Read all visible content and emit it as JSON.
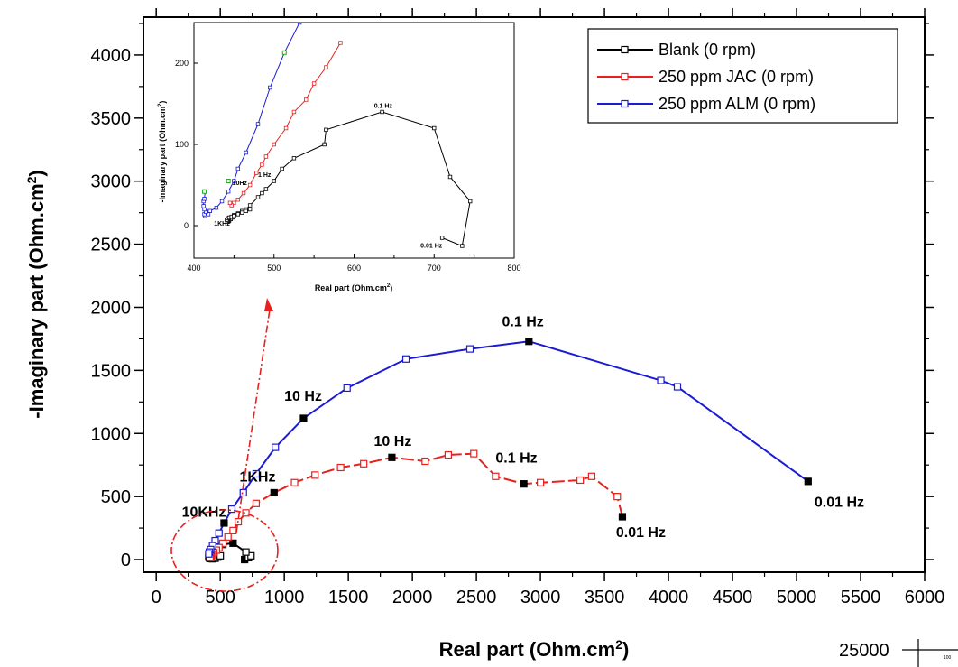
{
  "chart_data": {
    "type": "line",
    "xlabel": "Real part (Ohm.cm²)",
    "ylabel": "-Imaginary part (Ohm.cm²)",
    "xlim": [
      -100,
      6000
    ],
    "ylim": [
      -100,
      4300
    ],
    "xticks": [
      "0",
      "500",
      "1000",
      "1500",
      "2000",
      "2500",
      "3000",
      "3500",
      "4000",
      "4500",
      "5000",
      "5500",
      "6000"
    ],
    "yticks": [
      "0",
      "500",
      "1000",
      "1500",
      "2000",
      "2500",
      "3000",
      "3500",
      "4000"
    ],
    "grid": false,
    "legend_position": "top-right",
    "colors": {
      "blank": "#000000",
      "jac": "#e8201e",
      "alm": "#1b1bd4",
      "green": "#22aa22"
    },
    "series": [
      {
        "name": "Blank (0 rpm)",
        "color": "#000000",
        "x": [
          690,
          720,
          740,
          700,
          600,
          520,
          480,
          450,
          430,
          420,
          415,
          410,
          415,
          425,
          440,
          460,
          480,
          500
        ],
        "y": [
          0,
          15,
          30,
          60,
          130,
          120,
          100,
          80,
          60,
          45,
          30,
          20,
          12,
          8,
          6,
          10,
          20,
          30
        ],
        "filled_idx": [
          0,
          4
        ]
      },
      {
        "name": "250 ppm JAC (0 rpm)",
        "color": "#e8201e",
        "x": [
          3640,
          3600,
          3400,
          3310,
          3000,
          2870,
          2650,
          2480,
          2280,
          2100,
          1840,
          1620,
          1440,
          1240,
          1080,
          920,
          780,
          700,
          640,
          600,
          560,
          520,
          490,
          470,
          450,
          440,
          430,
          425,
          420
        ],
        "y": [
          340,
          500,
          660,
          630,
          610,
          600,
          660,
          840,
          830,
          780,
          810,
          760,
          730,
          670,
          610,
          530,
          445,
          370,
          300,
          230,
          180,
          130,
          95,
          75,
          55,
          40,
          30,
          22,
          15
        ],
        "filled_idx": [
          0,
          5,
          10,
          15
        ]
      },
      {
        "name": "250 ppm ALM (0 rpm)",
        "color": "#1b1bd4",
        "x": [
          5090,
          4070,
          3940,
          2910,
          2450,
          1950,
          1490,
          1150,
          930,
          780,
          680,
          590,
          530,
          490,
          460,
          440,
          425,
          415,
          410
        ],
        "y": [
          620,
          1370,
          1420,
          1730,
          1670,
          1590,
          1360,
          1120,
          890,
          680,
          530,
          400,
          290,
          210,
          150,
          110,
          80,
          60,
          45
        ],
        "filled_idx": [
          0,
          3,
          7,
          12
        ]
      }
    ],
    "annotations": [
      {
        "text": "10KHz",
        "x": 200,
        "y": 340
      },
      {
        "text": "1KHz",
        "x": 650,
        "y": 620
      },
      {
        "text": "10 Hz",
        "x": 1000,
        "y": 1260
      },
      {
        "text": "10 Hz",
        "x": 1700,
        "y": 900
      },
      {
        "text": "0.1 Hz",
        "x": 2700,
        "y": 1850
      },
      {
        "text": "0.1 Hz",
        "x": 2650,
        "y": 770
      },
      {
        "text": "0.01 Hz",
        "x": 3590,
        "y": 180
      },
      {
        "text": "0.01 Hz",
        "x": 5140,
        "y": 420
      }
    ],
    "extra_text": {
      "corner_number": "25000",
      "corner_small": "100"
    },
    "inset": {
      "xlabel": "Real part (Ohm.cm²)",
      "ylabel": "-Imaginary part (Ohm.cm²)",
      "xlim": [
        400,
        800
      ],
      "ylim": [
        -40,
        250
      ],
      "xticks": [
        "400",
        "500",
        "600",
        "700",
        "800"
      ],
      "yticks": [
        "0",
        "100",
        "200"
      ],
      "series": [
        {
          "name": "Blank (0 rpm)",
          "color": "#000000",
          "x": [
            710,
            735,
            745,
            720,
            700,
            635,
            565,
            563,
            525,
            510,
            500,
            490,
            485,
            480,
            470,
            465,
            460,
            455,
            450,
            448,
            446,
            444,
            443,
            442,
            441,
            442,
            444,
            447,
            450,
            455,
            460,
            465,
            470
          ],
          "y": [
            -15,
            -25,
            30,
            60,
            120,
            140,
            118,
            100,
            83,
            70,
            55,
            45,
            40,
            35,
            25,
            20,
            18,
            15,
            13,
            10,
            8,
            6,
            5,
            5,
            7,
            9,
            10,
            11,
            12,
            14,
            16,
            18,
            20
          ]
        },
        {
          "name": "250 ppm JAC (0 rpm)",
          "color": "#e8201e",
          "x": [
            583,
            565,
            550,
            540,
            525,
            515,
            500,
            490,
            485,
            478,
            470,
            462,
            455,
            450,
            447,
            445
          ],
          "y": [
            225,
            195,
            175,
            155,
            140,
            120,
            100,
            85,
            75,
            65,
            50,
            40,
            32,
            28,
            25,
            28
          ]
        },
        {
          "name": "250 ppm ALM (0 rpm)",
          "color": "#1b1bd4",
          "x": [
            532,
            513,
            495,
            480,
            465,
            455,
            450,
            443,
            435,
            428,
            420,
            418,
            414,
            413,
            415,
            413,
            412,
            412,
            413,
            414
          ],
          "y": [
            250,
            213,
            170,
            125,
            90,
            70,
            55,
            42,
            30,
            22,
            18,
            14,
            12,
            14,
            17,
            20,
            24,
            30,
            33,
            42
          ]
        }
      ],
      "green_points": [
        [
          513,
          213
        ],
        [
          443,
          55
        ],
        [
          413,
          42
        ]
      ],
      "annotations": [
        {
          "text": "0.1 Hz",
          "x": 625,
          "y": 145
        },
        {
          "text": "1 Hz",
          "x": 480,
          "y": 60
        },
        {
          "text": "10Hz",
          "x": 448,
          "y": 50
        },
        {
          "text": "1KHz",
          "x": 425,
          "y": 0
        },
        {
          "text": "0.01 Hz",
          "x": 683,
          "y": -27
        }
      ]
    }
  }
}
